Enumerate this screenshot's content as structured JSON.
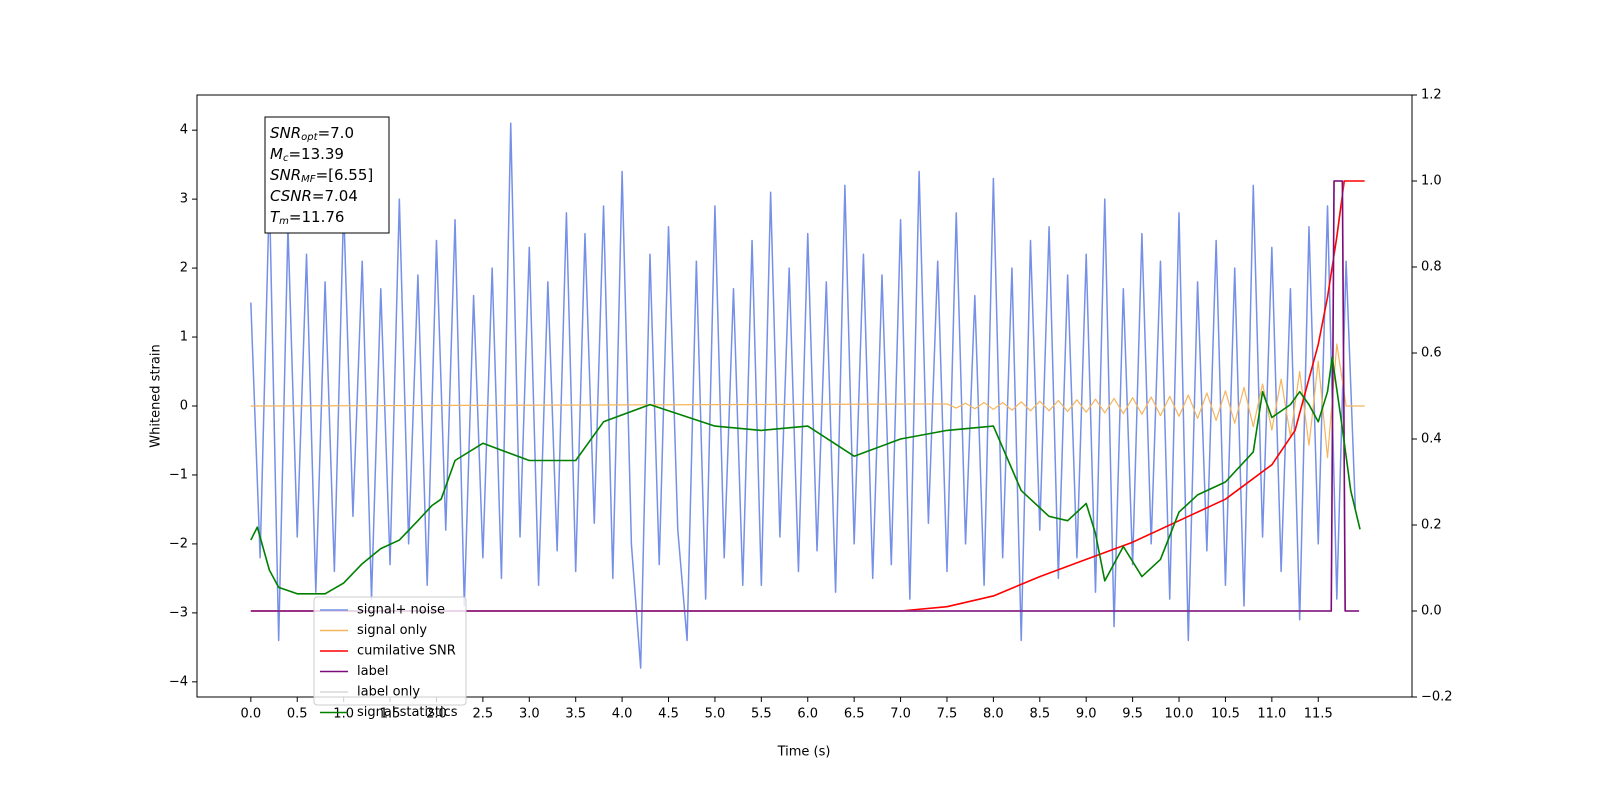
{
  "chart_data": {
    "type": "line",
    "xlabel": "Time (s)",
    "ylabel": "Whitened strain",
    "xlim": [
      -0.58,
      12.51
    ],
    "ylim": [
      -4.22,
      4.51
    ],
    "y2lim": [
      -0.2,
      1.2
    ],
    "xticks": [
      {
        "value": 0,
        "label": "0.0"
      },
      0.5,
      {
        "value": 1,
        "label": "1.0"
      },
      1.5,
      {
        "value": 2,
        "label": "2.0"
      },
      2.5,
      {
        "value": 3,
        "label": "3.0"
      },
      3.5,
      {
        "value": 4,
        "label": "4.0"
      },
      4.5,
      {
        "value": 5,
        "label": "5.0"
      },
      5.5,
      {
        "value": 6,
        "label": "6.0"
      },
      6.5,
      {
        "value": 7,
        "label": "7.0"
      },
      7.5,
      {
        "value": 8,
        "label": "8.0"
      },
      8.5,
      {
        "value": 9,
        "label": "9.0"
      },
      9.5,
      {
        "value": 10,
        "label": "10.0"
      },
      10.5,
      {
        "value": 11,
        "label": "11.0"
      },
      11.5
    ],
    "yticks": [
      {
        "value": -4,
        "label": "−4"
      },
      {
        "value": -3,
        "label": "−3"
      },
      {
        "value": -2,
        "label": "−2"
      },
      {
        "value": -1,
        "label": "−1"
      },
      0,
      1,
      2,
      3,
      4
    ],
    "y2ticks": [
      {
        "value": -0.2,
        "label": "−0.2"
      },
      {
        "value": 0,
        "label": "0.0"
      },
      0.2,
      0.4,
      0.6,
      0.8,
      {
        "value": 1,
        "label": "1.0"
      },
      1.2
    ],
    "annotation": [
      {
        "main": "SNR",
        "sub": "opt",
        "rest": "=7.0"
      },
      {
        "main": "M",
        "sub": "c",
        "rest": "=13.39"
      },
      {
        "main": "SNR",
        "sub": "MF",
        "rest": "=[6.55]"
      },
      {
        "main": "CSNR",
        "rest": "=7.04"
      },
      {
        "main": "T",
        "sub": "m",
        "rest": "=11.76"
      }
    ],
    "legend": "lower left",
    "series": [
      {
        "name": "signal+ noise",
        "color": "#7590e6",
        "x": [
          0,
          0.1,
          0.2,
          0.3,
          0.4,
          0.5,
          0.6,
          0.7,
          0.8,
          0.9,
          1,
          1.1,
          1.2,
          1.3,
          1.4,
          1.5,
          1.6,
          1.7,
          1.8,
          1.9,
          2,
          2.1,
          2.2,
          2.3,
          2.4,
          2.5,
          2.6,
          2.7,
          2.8,
          2.9,
          3,
          3.1,
          3.2,
          3.3,
          3.4,
          3.5,
          3.6,
          3.7,
          3.8,
          3.9,
          4,
          4.1,
          4.2,
          4.3,
          4.4,
          4.5,
          4.6,
          4.7,
          4.8,
          4.9,
          5,
          5.1,
          5.2,
          5.3,
          5.4,
          5.5,
          5.6,
          5.7,
          5.8,
          5.9,
          6,
          6.1,
          6.2,
          6.3,
          6.4,
          6.5,
          6.6,
          6.7,
          6.8,
          6.9,
          7,
          7.1,
          7.2,
          7.3,
          7.4,
          7.5,
          7.6,
          7.7,
          7.8,
          7.9,
          8,
          8.1,
          8.2,
          8.3,
          8.4,
          8.5,
          8.6,
          8.7,
          8.8,
          8.9,
          9,
          9.1,
          9.2,
          9.3,
          9.4,
          9.5,
          9.6,
          9.7,
          9.8,
          9.9,
          10,
          10.1,
          10.2,
          10.3,
          10.4,
          10.5,
          10.6,
          10.7,
          10.8,
          10.9,
          11,
          11.1,
          11.2,
          11.3,
          11.4,
          11.5,
          11.6,
          11.7,
          11.8,
          11.9
        ],
        "values": [
          1.5,
          -2.2,
          3.1,
          -3.4,
          2.6,
          -1.9,
          2.2,
          -2.7,
          1.8,
          -2.4,
          2.9,
          -1.6,
          2.1,
          -2.8,
          1.7,
          -2.3,
          3.0,
          -2.0,
          1.9,
          -2.6,
          2.4,
          -1.8,
          2.7,
          -2.9,
          1.6,
          -2.2,
          2.0,
          -2.5,
          4.1,
          -1.9,
          2.3,
          -2.6,
          1.8,
          -2.1,
          2.8,
          -2.4,
          2.5,
          -1.7,
          2.9,
          -2.5,
          3.4,
          -2.0,
          -3.8,
          2.2,
          -2.3,
          2.6,
          -1.8,
          -3.4,
          2.1,
          -2.8,
          2.9,
          -2.2,
          1.7,
          -2.6,
          2.4,
          -2.6,
          3.1,
          -1.9,
          2.0,
          -2.4,
          2.5,
          -2.1,
          1.8,
          -2.7,
          3.2,
          -2.0,
          2.2,
          -2.5,
          1.9,
          -2.3,
          2.7,
          -2.8,
          3.4,
          -1.7,
          2.1,
          -2.4,
          2.8,
          -2.0,
          1.6,
          -2.6,
          3.3,
          -2.2,
          2.0,
          -3.4,
          2.4,
          -1.8,
          2.6,
          -2.5,
          1.9,
          -2.2,
          2.2,
          -2.7,
          3.0,
          -3.2,
          1.7,
          -2.3,
          2.5,
          -2.0,
          2.1,
          -2.8,
          2.8,
          -3.4,
          1.8,
          -2.1,
          2.4,
          -2.6,
          2.0,
          -2.9,
          3.2,
          -1.9,
          2.3,
          -2.4,
          1.7,
          -3.1,
          2.6,
          -2.0,
          2.9,
          -2.8,
          2.1,
          -1.5
        ]
      },
      {
        "name": "signal only",
        "color": "#f5b55c",
        "x": [
          0,
          7.5,
          7.6,
          7.7,
          7.8,
          7.9,
          8,
          8.1,
          8.2,
          8.3,
          8.4,
          8.5,
          8.6,
          8.7,
          8.8,
          8.9,
          9,
          9.1,
          9.2,
          9.3,
          9.4,
          9.5,
          9.6,
          9.7,
          9.8,
          9.9,
          10,
          10.1,
          10.2,
          10.3,
          10.4,
          10.5,
          10.6,
          10.7,
          10.8,
          10.9,
          11,
          11.1,
          11.2,
          11.3,
          11.4,
          11.5,
          11.6,
          11.7,
          11.8,
          12
        ],
        "values": [
          0,
          0.03,
          -0.03,
          0.04,
          -0.04,
          0.05,
          -0.05,
          0.05,
          -0.06,
          0.06,
          -0.07,
          0.07,
          -0.07,
          0.08,
          -0.08,
          0.09,
          -0.09,
          0.1,
          -0.1,
          0.11,
          -0.11,
          0.12,
          -0.12,
          0.13,
          -0.14,
          0.14,
          -0.15,
          0.16,
          -0.18,
          0.19,
          -0.21,
          0.22,
          -0.25,
          0.27,
          -0.3,
          0.32,
          -0.35,
          0.39,
          -0.44,
          0.5,
          -0.57,
          0.65,
          -0.75,
          0.9,
          0,
          0
        ]
      },
      {
        "name": "cumilative SNR",
        "color": "#ff0000",
        "axis": "y2",
        "x": [
          0,
          7,
          7.5,
          8,
          8.5,
          9,
          9.5,
          10,
          10.5,
          11,
          11.25,
          11.5,
          11.6,
          11.7,
          11.78,
          12
        ],
        "values": [
          0,
          0,
          0.01,
          0.035,
          0.08,
          0.12,
          0.16,
          0.21,
          0.26,
          0.34,
          0.42,
          0.62,
          0.73,
          0.87,
          1,
          1
        ]
      },
      {
        "name": "label",
        "color": "#7b0a7b",
        "axis": "y2",
        "x": [
          0,
          11.64,
          11.67,
          11.76,
          11.79,
          11.94
        ],
        "values": [
          0,
          0,
          1,
          1,
          0,
          0
        ]
      },
      {
        "name": "label only",
        "color": "#d9d9d9",
        "axis": "y2",
        "x": [
          0,
          11.64,
          11.67,
          11.76,
          11.79,
          11.94
        ],
        "values": [
          0,
          0,
          1,
          1,
          0,
          0
        ]
      },
      {
        "name": "signal statistics",
        "color": "#008000",
        "axis": "y2",
        "x": [
          0,
          0.07,
          0.2,
          0.3,
          0.5,
          0.8,
          1,
          1.2,
          1.4,
          1.6,
          1.8,
          1.95,
          2.05,
          2.2,
          2.5,
          3,
          3.5,
          3.8,
          4.3,
          5,
          5.5,
          6,
          6.5,
          7,
          7.5,
          8,
          8.3,
          8.6,
          8.8,
          9,
          9.1,
          9.2,
          9.4,
          9.6,
          9.8,
          10,
          10.2,
          10.5,
          10.8,
          10.9,
          11,
          11.2,
          11.3,
          11.4,
          11.5,
          11.6,
          11.65,
          11.75,
          11.85,
          11.95
        ],
        "values": [
          0.165,
          0.195,
          0.095,
          0.055,
          0.04,
          0.04,
          0.065,
          0.11,
          0.145,
          0.165,
          0.21,
          0.245,
          0.26,
          0.35,
          0.39,
          0.35,
          0.35,
          0.44,
          0.48,
          0.43,
          0.42,
          0.43,
          0.36,
          0.4,
          0.42,
          0.43,
          0.28,
          0.22,
          0.21,
          0.25,
          0.18,
          0.07,
          0.15,
          0.08,
          0.12,
          0.23,
          0.27,
          0.3,
          0.37,
          0.51,
          0.45,
          0.48,
          0.51,
          0.48,
          0.44,
          0.51,
          0.59,
          0.44,
          0.28,
          0.19
        ]
      }
    ]
  }
}
